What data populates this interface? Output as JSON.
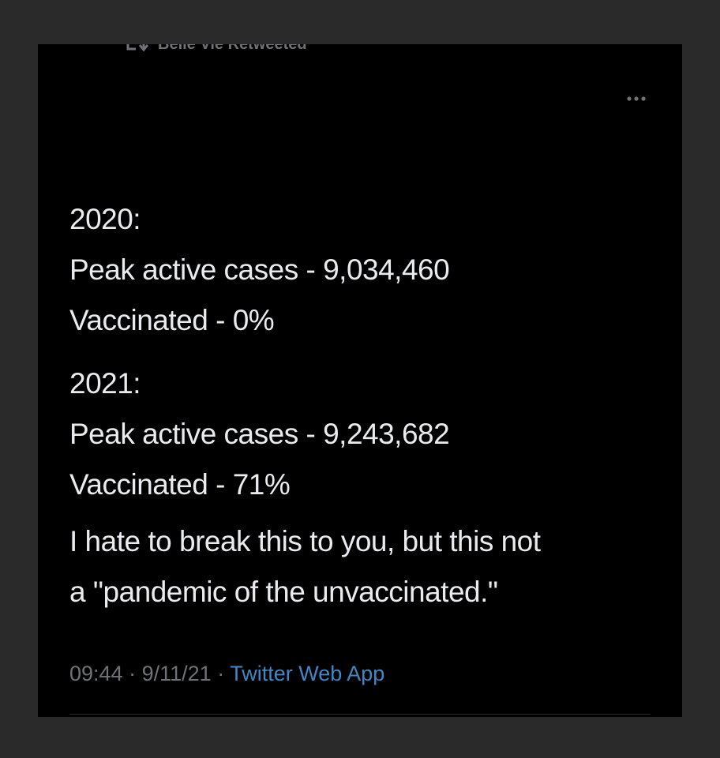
{
  "retweet": {
    "icon": "retweet-icon",
    "text": "Belle Vie Retweeted"
  },
  "more_menu": {
    "icon": "more-icon"
  },
  "tweet": {
    "lines": [
      "2020:",
      "Peak active cases - 9,034,460",
      "Vaccinated - 0%",
      "2021:",
      "Peak active cases - 9,243,682",
      "Vaccinated - 71%",
      "I hate to break this to you, but this not",
      "a \"pandemic of the unvaccinated.\""
    ],
    "time": "09:44",
    "date": "9/11/21",
    "separator": "·",
    "source": "Twitter Web App"
  },
  "colors": {
    "background": "#000000",
    "text": "#e9ebee",
    "muted": "#6f7378",
    "link": "#3f87c7"
  }
}
